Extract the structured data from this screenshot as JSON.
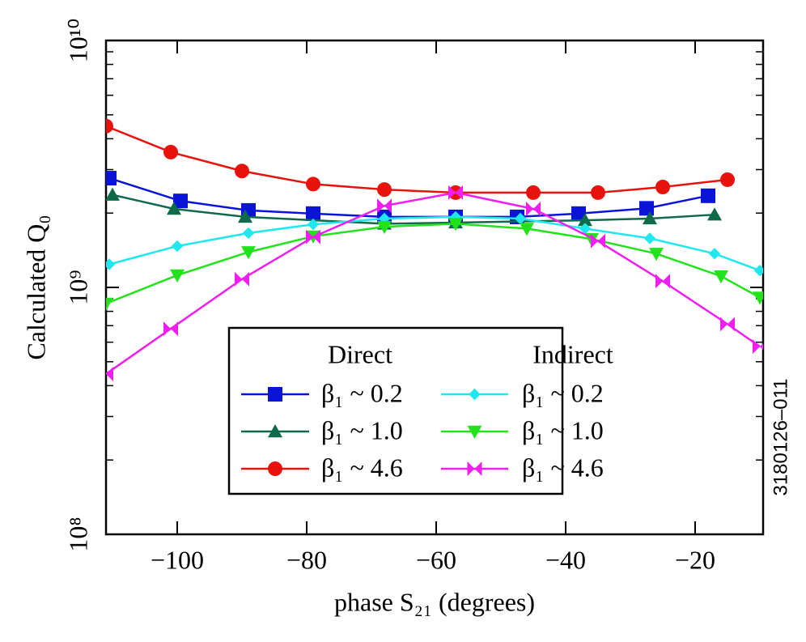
{
  "chart_data": {
    "type": "line",
    "x_label": "phase S₂₁ (degrees)",
    "y_label": "Calculated Q₀",
    "annotation": "3180126–011",
    "legend_titles": [
      "Direct",
      "Indirect"
    ],
    "log_y": true,
    "xlim": [
      -111,
      -9.5
    ],
    "ylim": [
      100000000,
      10000000000
    ],
    "xticks": [
      {
        "value": -100,
        "label": "−100"
      },
      {
        "value": -80,
        "label": "−80"
      },
      {
        "value": -60,
        "label": "−60"
      },
      {
        "value": -40,
        "label": "−40"
      },
      {
        "value": -20,
        "label": "−20"
      }
    ],
    "yticks": [
      {
        "value": 100000000,
        "label": "10⁸"
      },
      {
        "value": 1000000000,
        "label": "10⁹"
      },
      {
        "value": 10000000000,
        "label": "10¹⁰"
      }
    ],
    "series": [
      {
        "name": "β₁ ~ 0.2",
        "color": "#0a14d8",
        "marker": "square",
        "x": [
          -110.5,
          -99.5,
          -89,
          -79,
          -68,
          -57,
          -47.5,
          -38,
          -27.5,
          -18
        ],
        "values": [
          2770000000,
          2240000000,
          2050000000,
          1990000000,
          1930000000,
          1930000000,
          1930000000,
          1990000000,
          2090000000,
          2350000000
        ]
      },
      {
        "name": "β₁ ~ 1.0",
        "color": "#0f6a4a",
        "marker": "triangle",
        "x": [
          -110,
          -100.5,
          -89.5,
          -68,
          -57,
          -37,
          -27,
          -17
        ],
        "values": [
          2370000000,
          2080000000,
          1930000000,
          1810000000,
          1830000000,
          1870000000,
          1900000000,
          1970000000
        ]
      },
      {
        "name": "β₁ ~ 4.6",
        "color": "#e8120c",
        "marker": "circle",
        "x": [
          -111,
          -101,
          -90,
          -79,
          -68,
          -57,
          -45,
          -35,
          -25,
          -15
        ],
        "values": [
          4500000000,
          3530000000,
          2960000000,
          2620000000,
          2490000000,
          2420000000,
          2420000000,
          2420000000,
          2550000000,
          2730000000
        ]
      },
      {
        "name": "β₁ ~ 0.2",
        "color": "#1ee8ee",
        "marker": "diamond",
        "x": [
          -110.5,
          -100,
          -89,
          -79,
          -68,
          -57,
          -47,
          -37,
          -27,
          -17,
          -10
        ],
        "values": [
          1240000000,
          1470000000,
          1660000000,
          1800000000,
          1900000000,
          1930000000,
          1900000000,
          1730000000,
          1580000000,
          1370000000,
          1170000000
        ]
      },
      {
        "name": "β₁ ~ 1.0",
        "color": "#22e21c",
        "marker": "down-triangle",
        "x": [
          -111,
          -100,
          -89,
          -79,
          -68,
          -57,
          -46,
          -36,
          -26,
          -16,
          -10
        ],
        "values": [
          860000000,
          1120000000,
          1390000000,
          1610000000,
          1760000000,
          1810000000,
          1730000000,
          1570000000,
          1370000000,
          1110000000,
          910000000
        ]
      },
      {
        "name": "β₁ ~ 4.6",
        "color": "#f01ef0",
        "marker": "bowtie",
        "x": [
          -111,
          -101,
          -90,
          -79,
          -68,
          -57,
          -45,
          -35,
          -25,
          -15,
          -10
        ],
        "values": [
          446000000,
          680000000,
          1080000000,
          1600000000,
          2140000000,
          2420000000,
          2080000000,
          1540000000,
          1060000000,
          710000000,
          576000000
        ]
      }
    ]
  }
}
